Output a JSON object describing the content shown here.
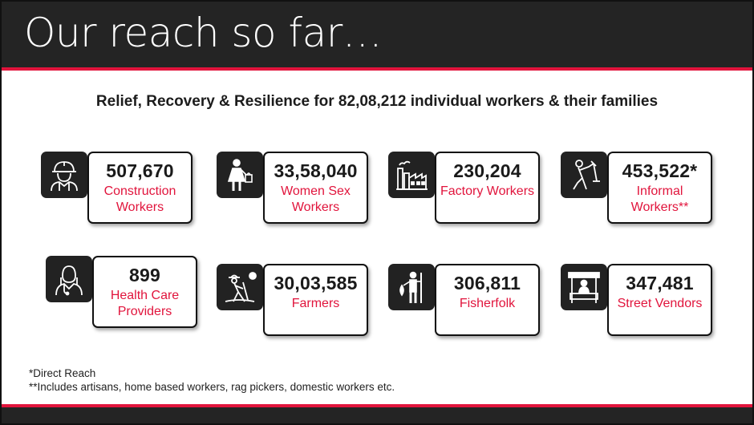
{
  "title": "Our reach so far…",
  "subtitle": "Relief, Recovery & Resilience for 82,08,212 individual workers & their families",
  "cards": [
    {
      "value": "507,670",
      "label": "Construction Workers",
      "icon": "construction-worker-icon"
    },
    {
      "value": "33,58,040",
      "label": "Women Sex Workers",
      "icon": "woman-icon"
    },
    {
      "value": "230,204",
      "label": "Factory Workers",
      "icon": "factory-icon"
    },
    {
      "value": "453,522*",
      "label": "Informal Workers**",
      "icon": "informal-worker-icon"
    },
    {
      "value": "899",
      "label": "Health Care Providers",
      "icon": "health-care-provider-icon"
    },
    {
      "value": "30,03,585",
      "label": "Farmers",
      "icon": "farmer-icon"
    },
    {
      "value": "306,811",
      "label": "Fisherfolk",
      "icon": "fisherfolk-icon"
    },
    {
      "value": "347,481",
      "label": "Street Vendors",
      "icon": "street-vendor-icon"
    }
  ],
  "notes": [
    "*Direct Reach",
    "**Includes artisans, home based workers, rag pickers, domestic workers etc."
  ],
  "colors": {
    "accent": "#e1143c",
    "dark": "#242424"
  }
}
